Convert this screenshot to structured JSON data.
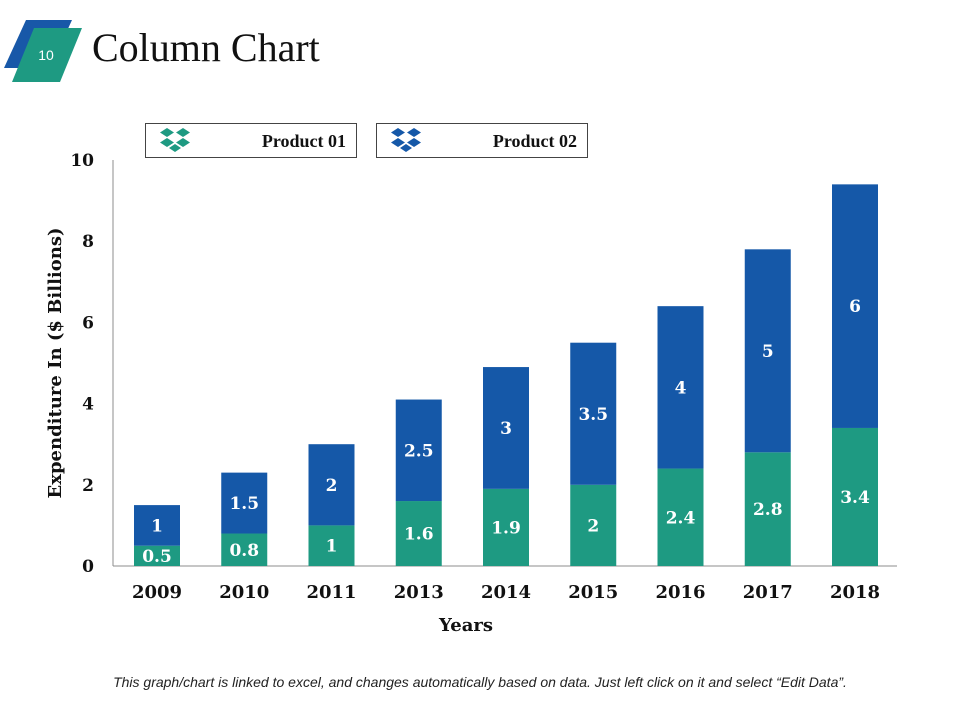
{
  "slide": {
    "number": "10",
    "title": "Column Chart",
    "footnote": "This graph/chart is linked to excel, and changes automatically based on data. Just left click on it and select “Edit Data”.",
    "colors": {
      "badge_dark": "#1858a8",
      "badge_light": "#1e9a82"
    }
  },
  "legend": [
    {
      "label": "Product 01",
      "icon": "dropbox-icon",
      "color": "#1e9a82"
    },
    {
      "label": "Product 02",
      "icon": "dropbox-icon",
      "color": "#1558a8"
    }
  ],
  "chart_data": {
    "type": "bar",
    "stacked": true,
    "categories": [
      "2009",
      "2010",
      "2011",
      "2013",
      "2014",
      "2015",
      "2016",
      "2017",
      "2018"
    ],
    "series": [
      {
        "name": "Product 01",
        "color": "#1e9a82",
        "values": [
          0.5,
          0.8,
          1,
          1.6,
          1.9,
          2,
          2.4,
          2.8,
          3.4
        ],
        "labels": [
          "0.5",
          "0.8",
          "1",
          "1.6",
          "1.9",
          "2",
          "2.4",
          "2.8",
          "3.4"
        ]
      },
      {
        "name": "Product 02",
        "color": "#1558a8",
        "values": [
          1,
          1.5,
          2,
          2.5,
          3,
          3.5,
          4,
          5,
          6
        ],
        "labels": [
          "1",
          "1.5",
          "2",
          "2.5",
          "3",
          "3.5",
          "4",
          "5",
          "6"
        ]
      }
    ],
    "xlabel": "Years",
    "ylabel": "Expenditure In ($ Billions)",
    "ylim": [
      0,
      10
    ],
    "yticks": [
      "0",
      "2",
      "4",
      "6",
      "8",
      "10"
    ],
    "grid": false,
    "legend_position": "top"
  }
}
